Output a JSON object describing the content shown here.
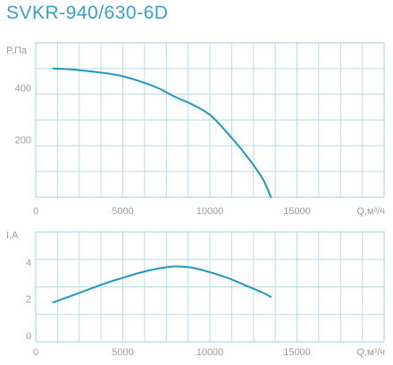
{
  "title": "SVKR-940/630-6D",
  "colors": {
    "accent": "#3a9ec6",
    "curve": "#1f97c0",
    "grid": "#b9dcec",
    "text": "#9b9b9b"
  },
  "chart_data": [
    {
      "type": "line",
      "title": "",
      "xlabel": "Q,м³/ч",
      "ylabel": "P,Па",
      "xlim": [
        0,
        20000
      ],
      "ylim": [
        0,
        600
      ],
      "xticks": [
        "0",
        "5000",
        "10000",
        "15000"
      ],
      "xtick_values": [
        0,
        5000,
        10000,
        15000
      ],
      "yticks": [
        "200",
        "400"
      ],
      "ytick_values": [
        200,
        400
      ],
      "grid": true,
      "series": [
        {
          "x": [
            1000,
            2000,
            3000,
            4000,
            5000,
            6000,
            7000,
            8000,
            9000,
            10000,
            11000,
            12000,
            13000,
            13500
          ],
          "y": [
            500,
            497,
            490,
            482,
            470,
            450,
            425,
            390,
            360,
            320,
            250,
            170,
            75,
            0
          ]
        }
      ]
    },
    {
      "type": "line",
      "title": "",
      "xlabel": "Q,м³/ч",
      "ylabel": "I,А",
      "xlim": [
        0,
        20000
      ],
      "ylim": [
        0,
        6
      ],
      "xticks": [
        "0",
        "5000",
        "10000",
        "15000"
      ],
      "xtick_values": [
        0,
        5000,
        10000,
        15000
      ],
      "yticks": [
        "0",
        "2",
        "4"
      ],
      "ytick_values": [
        0,
        2,
        4
      ],
      "grid": true,
      "series": [
        {
          "x": [
            1000,
            2000,
            3000,
            4000,
            5000,
            6000,
            7000,
            8000,
            9000,
            10000,
            11000,
            12000,
            13000,
            13500
          ],
          "y": [
            2.15,
            2.5,
            2.85,
            3.2,
            3.5,
            3.78,
            4.0,
            4.12,
            4.05,
            3.8,
            3.5,
            3.1,
            2.7,
            2.45
          ]
        }
      ]
    }
  ]
}
